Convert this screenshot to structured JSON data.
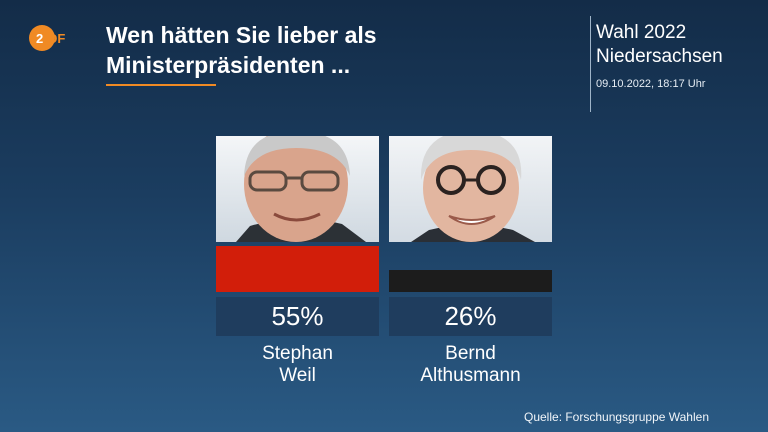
{
  "header": {
    "logo_text": "ZDF",
    "title_line1": "Wen hätten Sie lieber als",
    "title_line2": "Ministerpräsidenten ...",
    "election_line1": "Wahl 2022",
    "election_line2": "Niedersachsen",
    "timestamp": "09.10.2022, 18:17 Uhr"
  },
  "source": "Quelle: Forschungsgruppe Wahlen",
  "colors": {
    "accent": "#f08a24",
    "spd_red": "#d21e0a",
    "cdu_black": "#1c1c1c",
    "value_box": "#1f3d5e"
  },
  "chart_data": {
    "type": "bar",
    "categories": [
      "Stephan Weil",
      "Bernd Althusmann"
    ],
    "values": [
      55,
      26
    ],
    "value_labels": [
      "55%",
      "26%"
    ],
    "name_lines": [
      [
        "Stephan",
        "Weil"
      ],
      [
        "Bernd",
        "Althusmann"
      ]
    ],
    "bar_colors": [
      "#d21e0a",
      "#1c1c1c"
    ],
    "ylim": [
      0,
      100
    ],
    "title": "",
    "xlabel": "",
    "ylabel": ""
  }
}
